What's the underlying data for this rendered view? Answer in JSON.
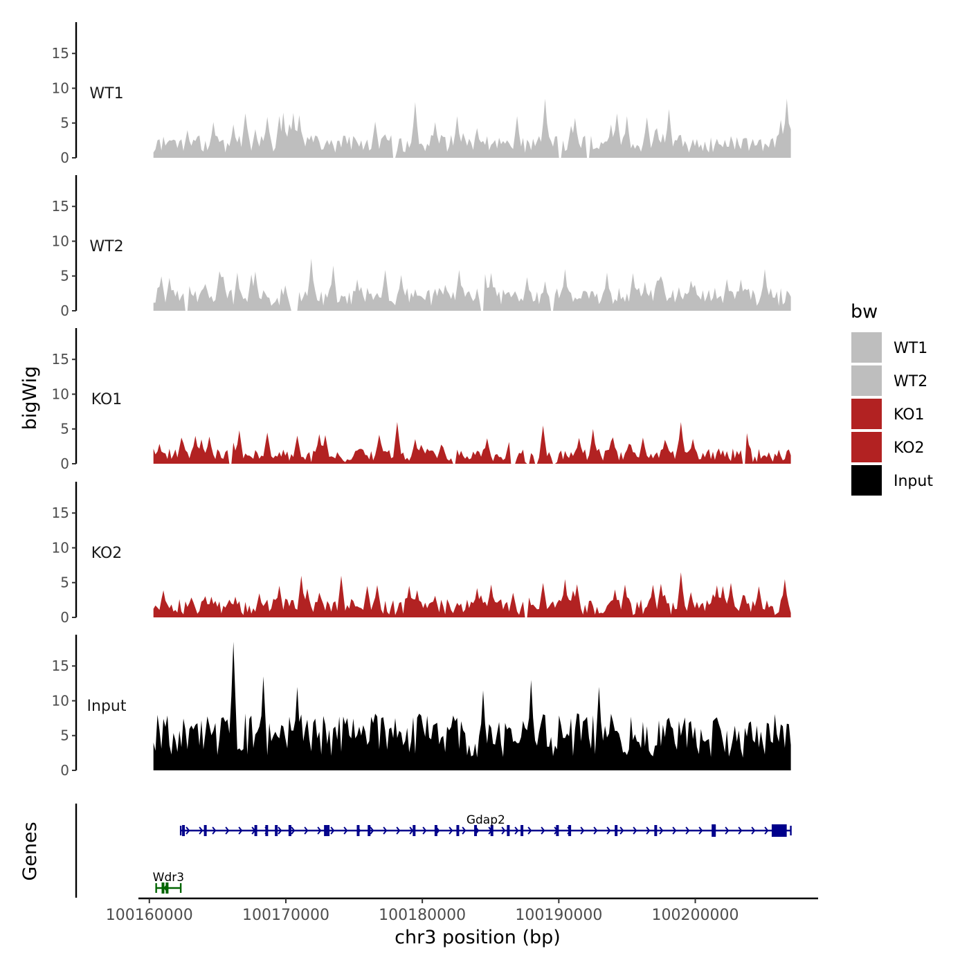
{
  "chart_data": {
    "type": "area",
    "subtype": "genome-browser-coverage",
    "y_axis_title": "bigWig",
    "genes_panel_title": "Genes",
    "x_axis_title": "chr3 position (bp)",
    "x_range": [
      100159200,
      100209000
    ],
    "data_range": [
      100160300,
      100207000
    ],
    "x_ticks": [
      100160000,
      100170000,
      100180000,
      100190000,
      100200000
    ],
    "x_tick_labels": [
      "100160000",
      "100170000",
      "100180000",
      "100190000",
      "100200000"
    ],
    "y_range": [
      0,
      19.5
    ],
    "y_ticks": [
      0,
      5,
      10,
      15
    ],
    "y_tick_labels": [
      "0",
      "5",
      "10",
      "15"
    ],
    "tracks": [
      {
        "name": "WT1",
        "color": "#bebebe",
        "base": 2.0,
        "noise": 1.3,
        "peak_count": 48,
        "peak_range": [
          2.5,
          6.5
        ],
        "gap_count": 3,
        "peaks": [
          {
            "x": 100166200,
            "y": 4.5
          },
          {
            "x": 100169800,
            "y": 6.5
          },
          {
            "x": 100179500,
            "y": 8.0
          },
          {
            "x": 100182600,
            "y": 6.0
          },
          {
            "x": 100187000,
            "y": 6.0
          },
          {
            "x": 100189000,
            "y": 8.5
          },
          {
            "x": 100195000,
            "y": 6.0
          },
          {
            "x": 100198000,
            "y": 7.0
          },
          {
            "x": 100206700,
            "y": 8.5
          }
        ]
      },
      {
        "name": "WT2",
        "color": "#bebebe",
        "base": 2.0,
        "noise": 1.3,
        "peak_count": 48,
        "peak_range": [
          2.5,
          6.0
        ],
        "gap_count": 5,
        "peaks": [
          {
            "x": 100171800,
            "y": 7.5
          },
          {
            "x": 100173500,
            "y": 6.5
          },
          {
            "x": 100190500,
            "y": 6.0
          },
          {
            "x": 100205100,
            "y": 6.0
          },
          {
            "x": 100193500,
            "y": 5.5
          },
          {
            "x": 100166500,
            "y": 5.5
          }
        ]
      },
      {
        "name": "KO1",
        "color": "#b22222",
        "base": 1.2,
        "noise": 1.0,
        "peak_count": 44,
        "peak_range": [
          1.5,
          4.5
        ],
        "gap_count": 8,
        "peaks": [
          {
            "x": 100178200,
            "y": 6.0
          },
          {
            "x": 100188900,
            "y": 5.5
          },
          {
            "x": 100199000,
            "y": 6.0
          },
          {
            "x": 100166600,
            "y": 4.8
          },
          {
            "x": 100192500,
            "y": 5.0
          }
        ]
      },
      {
        "name": "KO2",
        "color": "#b22222",
        "base": 1.5,
        "noise": 1.2,
        "peak_count": 46,
        "peak_range": [
          2.0,
          5.0
        ],
        "gap_count": 1,
        "peaks": [
          {
            "x": 100171200,
            "y": 6.0
          },
          {
            "x": 100174000,
            "y": 6.0
          },
          {
            "x": 100199000,
            "y": 6.5
          },
          {
            "x": 100190500,
            "y": 5.5
          },
          {
            "x": 100206500,
            "y": 5.5
          }
        ]
      },
      {
        "name": "Input",
        "color": "#000000",
        "base": 5.0,
        "noise": 3.2,
        "peak_count": 36,
        "peak_range": [
          3.0,
          8.0
        ],
        "gap_count": 0,
        "peaks": [
          {
            "x": 100166200,
            "y": 18.5
          },
          {
            "x": 100188000,
            "y": 13.0
          },
          {
            "x": 100168300,
            "y": 13.5
          },
          {
            "x": 100193000,
            "y": 12.0
          },
          {
            "x": 100170800,
            "y": 12.0
          },
          {
            "x": 100184500,
            "y": 11.5
          }
        ]
      }
    ],
    "genes": [
      {
        "name": "Gdap2",
        "color": "#00008b",
        "start": 100162300,
        "end": 100207000,
        "strand": "+",
        "row": 1,
        "exons": [
          100162500,
          100164100,
          100167800,
          100168600,
          100169300,
          100170300,
          100172900,
          100173100,
          100175300,
          100176100,
          100179400,
          100181000,
          100182600,
          100183900,
          100185100,
          100186300,
          100187300,
          100189900,
          100190800,
          100194200,
          100197100,
          100201400
        ],
        "big_exons": [
          [
            100201200,
            100201500
          ],
          [
            100205600,
            100206700
          ]
        ]
      },
      {
        "name": "Wdr3",
        "color": "#006400",
        "start": 100160500,
        "end": 100162300,
        "strand": "-",
        "row": 2,
        "exons": [
          100161000,
          100161300
        ],
        "big_exons": []
      }
    ],
    "legend": {
      "title": "bw",
      "position": "right",
      "items": [
        {
          "label": "WT1",
          "color": "#bebebe"
        },
        {
          "label": "WT2",
          "color": "#bebebe"
        },
        {
          "label": "KO1",
          "color": "#b22222"
        },
        {
          "label": "KO2",
          "color": "#b22222"
        },
        {
          "label": "Input",
          "color": "#000000"
        }
      ]
    }
  }
}
